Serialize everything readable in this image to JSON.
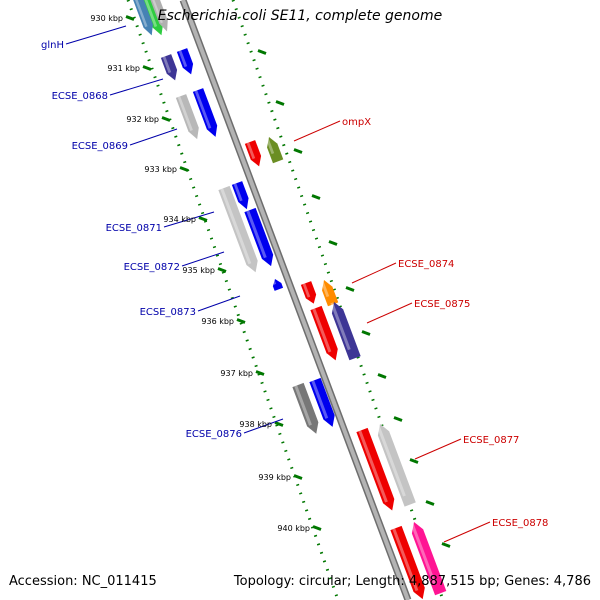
{
  "title": "Escherichia coli SE11, complete genome",
  "footer": {
    "accession": "Accession: NC_011415",
    "summary": "Topology: circular; Length: 4,887,515 bp; Genes: 4,786"
  },
  "colors": {
    "backbone": "#999999",
    "tick": "#007700",
    "label_left": "#0000aa",
    "label_right": "#cc0000"
  },
  "kbp_ticks": [
    "930 kbp",
    "931 kbp",
    "932 kbp",
    "933 kbp",
    "934 kbp",
    "935 kbp",
    "936 kbp",
    "937 kbp",
    "938 kbp",
    "939 kbp",
    "940 kbp"
  ],
  "labels_left": [
    "glnH",
    "ECSE_0868",
    "ECSE_0869",
    "ECSE_0871",
    "ECSE_0872",
    "ECSE_0873",
    "ECSE_0876"
  ],
  "labels_right": [
    "ompX",
    "ECSE_0874",
    "ECSE_0875",
    "ECSE_0877",
    "ECSE_0878"
  ]
}
